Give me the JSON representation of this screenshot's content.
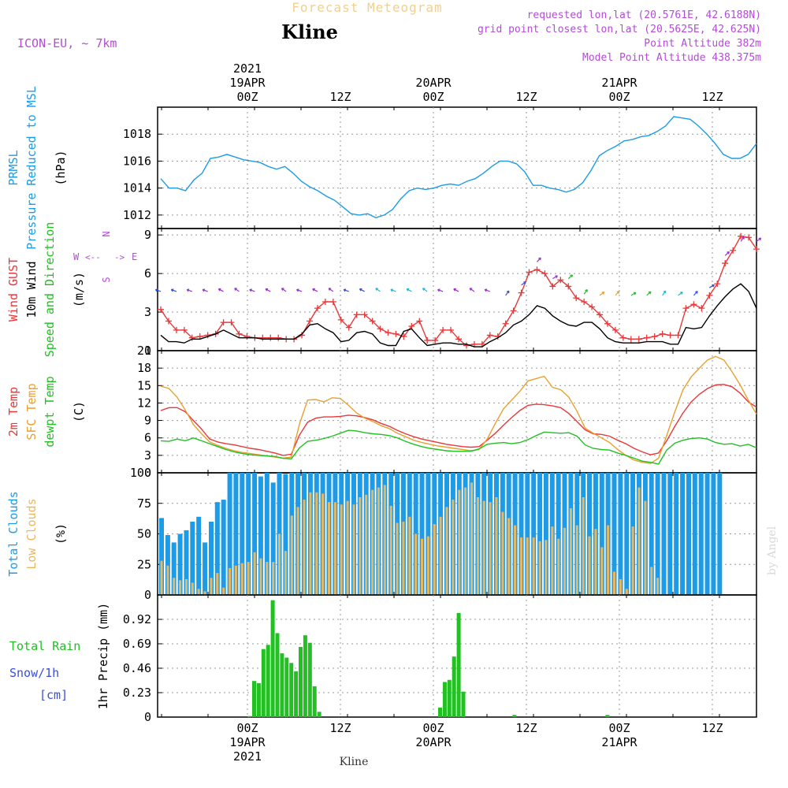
{
  "header": {
    "title": "Forecast Meteogram",
    "location": "Kline",
    "model": "ICON-EU, ~ 7km",
    "requested": "requested lon,lat (20.5761E, 42.6188N)",
    "grid_point": "grid point closest lon,lat (20.5625E, 42.625N)",
    "point_altitude": "Point Altitude 382m",
    "model_altitude": "Model Point Altitude 438.375m",
    "footer_location": "Kline",
    "watermark": "by Angel"
  },
  "time_axis": {
    "major_labels": [
      "00Z",
      "12Z",
      "00Z",
      "12Z",
      "00Z",
      "12Z"
    ],
    "date_labels": [
      "19APR",
      "20APR",
      "21APR"
    ],
    "year_label": "2021"
  },
  "chart_data": [
    {
      "type": "line",
      "id": "pressure",
      "ylabel_lines": [
        "PRMSL",
        "Pressure Reduced to MSL"
      ],
      "unit": "(hPa)",
      "ylim": [
        1011,
        1020
      ],
      "yticks": [
        1012,
        1014,
        1016,
        1018
      ],
      "grid": true,
      "series": [
        {
          "name": "PRMSL",
          "color": "#1e9be6",
          "values": [
            1014.7,
            1014.0,
            1014.0,
            1013.8,
            1014.6,
            1015.1,
            1016.2,
            1016.3,
            1016.5,
            1016.3,
            1016.1,
            1016.0,
            1015.9,
            1015.6,
            1015.4,
            1015.6,
            1015.1,
            1014.5,
            1014.1,
            1013.8,
            1013.4,
            1013.1,
            1012.6,
            1012.1,
            1012.0,
            1012.1,
            1011.8,
            1012.0,
            1012.4,
            1013.2,
            1013.8,
            1014.0,
            1013.9,
            1014.0,
            1014.2,
            1014.3,
            1014.2,
            1014.5,
            1014.7,
            1015.1,
            1015.6,
            1016.0,
            1016.0,
            1015.8,
            1015.2,
            1014.2,
            1014.2,
            1014.0,
            1013.9,
            1013.7,
            1013.9,
            1014.4,
            1015.3,
            1016.4,
            1016.8,
            1017.1,
            1017.5,
            1017.6,
            1017.8,
            1017.9,
            1018.2,
            1018.6,
            1019.3,
            1019.2,
            1019.1,
            1018.6,
            1018.0,
            1017.3,
            1016.5,
            1016.2,
            1016.2,
            1016.5,
            1017.3
          ]
        }
      ]
    },
    {
      "type": "line",
      "id": "wind",
      "ylabel_lines": [
        "Wind GUST",
        "10m Wind",
        "Speed and Direction"
      ],
      "unit": "(m/s)",
      "compass": {
        "n": "N",
        "s": "S",
        "w": "W",
        "e": "E"
      },
      "ylim": [
        0,
        9.5
      ],
      "yticks": [
        0,
        3,
        6,
        9
      ],
      "grid": true,
      "series": [
        {
          "name": "Wind GUST",
          "color": "#e8383a",
          "values": [
            3.2,
            2.3,
            1.6,
            1.6,
            1.0,
            1.1,
            1.2,
            1.3,
            2.2,
            2.2,
            1.3,
            1.1,
            1.0,
            1.0,
            1.0,
            1.0,
            0.9,
            0.9,
            1.2,
            2.3,
            3.3,
            3.8,
            3.8,
            2.4,
            1.8,
            2.8,
            2.8,
            2.3,
            1.7,
            1.4,
            1.3,
            1.1,
            1.9,
            2.3,
            0.8,
            0.8,
            1.6,
            1.6,
            0.9,
            0.4,
            0.5,
            0.5,
            1.2,
            1.1,
            2.1,
            3.1,
            4.5,
            6.1,
            6.3,
            6.0,
            5.0,
            5.5,
            5.0,
            4.1,
            3.8,
            3.4,
            2.8,
            2.1,
            1.6,
            1.0,
            0.9,
            0.9,
            1.0,
            1.1,
            1.3,
            1.2,
            1.2,
            3.3,
            3.6,
            3.3,
            4.3,
            5.2,
            6.8,
            7.8,
            8.9,
            8.8,
            7.9
          ]
        },
        {
          "name": "10m Wind",
          "color": "#000000",
          "values": [
            1.2,
            0.7,
            0.7,
            0.6,
            0.9,
            0.9,
            1.1,
            1.3,
            1.6,
            1.3,
            1.0,
            1.0,
            1.0,
            0.9,
            0.9,
            0.9,
            0.9,
            0.9,
            1.3,
            2.0,
            2.1,
            1.7,
            1.4,
            0.7,
            0.8,
            1.4,
            1.5,
            1.3,
            0.6,
            0.4,
            0.4,
            1.5,
            1.7,
            1.0,
            0.4,
            0.5,
            0.6,
            0.6,
            0.5,
            0.5,
            0.3,
            0.3,
            0.7,
            1.0,
            1.4,
            2.0,
            2.3,
            2.8,
            3.5,
            3.3,
            2.7,
            2.3,
            2.0,
            1.9,
            2.2,
            2.2,
            1.7,
            1.0,
            0.7,
            0.6,
            0.6,
            0.6,
            0.7,
            0.7,
            0.7,
            0.5,
            0.5,
            1.8,
            1.7,
            1.8,
            2.7,
            3.5,
            4.2,
            4.8,
            5.2,
            4.6,
            3.3
          ]
        }
      ]
    },
    {
      "type": "line",
      "id": "temperature",
      "ylabel_lines": [
        "2m Temp",
        "SFC Temp",
        "dewpt Temp"
      ],
      "unit": "(C)",
      "ylim": [
        0,
        21
      ],
      "yticks": [
        0,
        3,
        6,
        9,
        12,
        15,
        18,
        21
      ],
      "grid": true,
      "series": [
        {
          "name": "2m Temp",
          "color": "#e8383a",
          "values": [
            10.7,
            11.2,
            11.2,
            10.5,
            9.0,
            7.5,
            5.8,
            5.3,
            5.0,
            4.8,
            4.5,
            4.2,
            4.0,
            3.7,
            3.4,
            3.0,
            3.2,
            6.5,
            8.7,
            9.4,
            9.6,
            9.6,
            9.7,
            9.9,
            9.8,
            9.5,
            9.1,
            8.5,
            8.0,
            7.3,
            6.7,
            6.2,
            5.8,
            5.5,
            5.2,
            4.9,
            4.7,
            4.5,
            4.4,
            4.5,
            5.6,
            6.8,
            8.2,
            9.5,
            10.7,
            11.6,
            11.8,
            11.7,
            11.5,
            11.2,
            10.2,
            8.8,
            7.4,
            6.7,
            6.6,
            6.3,
            5.6,
            5.0,
            4.2,
            3.6,
            3.1,
            3.4,
            5.5,
            8.0,
            10.3,
            12.2,
            13.5,
            14.5,
            15.1,
            15.2,
            14.8,
            13.7,
            12.2,
            11.3
          ]
        },
        {
          "name": "SFC Temp",
          "color": "#e8a030",
          "values": [
            14.9,
            14.5,
            13.0,
            10.8,
            8.3,
            6.7,
            5.3,
            4.7,
            4.2,
            3.8,
            3.5,
            3.3,
            3.1,
            2.9,
            2.7,
            2.5,
            2.7,
            8.4,
            12.5,
            12.6,
            12.2,
            12.9,
            12.8,
            11.6,
            10.3,
            9.4,
            8.8,
            8.1,
            7.6,
            6.8,
            6.2,
            5.6,
            5.2,
            4.9,
            4.6,
            4.4,
            4.2,
            4.0,
            3.8,
            4.0,
            5.8,
            8.5,
            11.0,
            12.5,
            14.0,
            15.8,
            16.2,
            16.6,
            14.7,
            14.3,
            13.0,
            10.6,
            7.7,
            6.8,
            6.0,
            5.2,
            4.0,
            3.0,
            2.2,
            1.8,
            1.6,
            2.5,
            6.4,
            10.5,
            14.3,
            16.5,
            18.0,
            19.4,
            20.0,
            19.4,
            17.4,
            15.1,
            12.5,
            10.1
          ]
        },
        {
          "name": "dewpt Temp",
          "color": "#22c022",
          "values": [
            5.5,
            5.4,
            5.8,
            5.5,
            6.0,
            5.5,
            5.0,
            4.5,
            4.0,
            3.6,
            3.3,
            3.1,
            3.0,
            2.9,
            2.8,
            2.5,
            2.4,
            4.3,
            5.4,
            5.6,
            5.9,
            6.3,
            6.8,
            7.3,
            7.2,
            6.9,
            6.7,
            6.6,
            6.4,
            6.0,
            5.4,
            4.9,
            4.5,
            4.2,
            4.0,
            3.8,
            3.7,
            3.7,
            3.7,
            4.1,
            4.9,
            5.1,
            5.2,
            5.0,
            5.2,
            5.7,
            6.4,
            7.0,
            6.9,
            6.8,
            6.9,
            6.3,
            4.8,
            4.2,
            4.0,
            3.9,
            3.4,
            3.0,
            2.5,
            2.0,
            1.8,
            1.5,
            3.9,
            5.1,
            5.6,
            5.9,
            6.0,
            5.8,
            5.2,
            4.9,
            5.0,
            4.6,
            4.9,
            4.3
          ]
        }
      ]
    },
    {
      "type": "bar",
      "id": "clouds",
      "ylabel_lines": [
        "Total Clouds",
        "Low Clouds"
      ],
      "unit": "(%)",
      "ylim": [
        0,
        100
      ],
      "yticks": [
        0,
        25,
        50,
        75,
        100
      ],
      "grid": true,
      "series": [
        {
          "name": "Total Clouds",
          "color": "#1e9be6",
          "values": [
            63,
            49,
            43,
            50,
            53,
            60,
            64,
            43,
            60,
            76,
            78,
            100,
            100,
            100,
            100,
            100,
            97,
            100,
            92,
            100,
            99,
            100,
            100,
            100,
            100,
            100,
            100,
            100,
            100,
            100,
            100,
            100,
            100,
            100,
            100,
            100,
            100,
            100,
            100,
            100,
            100,
            100,
            100,
            100,
            100,
            100,
            100,
            100,
            100,
            100,
            100,
            100,
            100,
            100,
            100,
            100,
            100,
            100,
            100,
            100,
            100,
            100,
            100,
            100,
            100,
            100,
            100,
            100,
            100,
            100,
            100,
            100,
            100,
            100,
            100,
            100,
            100,
            100,
            100,
            100,
            100,
            100,
            100,
            100,
            100,
            100,
            100,
            100,
            100,
            100,
            100
          ]
        },
        {
          "name": "Low Clouds",
          "color": "#e8b860",
          "values": [
            28,
            24,
            14,
            12,
            13,
            10,
            5,
            3,
            14,
            18,
            6,
            22,
            24,
            26,
            27,
            35,
            30,
            27,
            27,
            50,
            36,
            65,
            72,
            78,
            84,
            84,
            83,
            76,
            76,
            74,
            77,
            74,
            80,
            82,
            86,
            88,
            90,
            73,
            59,
            60,
            64,
            50,
            46,
            48,
            58,
            64,
            72,
            78,
            86,
            88,
            92,
            80,
            77,
            76,
            80,
            68,
            63,
            57,
            47,
            47,
            47,
            44,
            45,
            56,
            46,
            55,
            71,
            57,
            80,
            48,
            54,
            39,
            57,
            19,
            13,
            5,
            56,
            88,
            77,
            23,
            14,
            0,
            0,
            0,
            0,
            0,
            0
          ]
        }
      ]
    },
    {
      "type": "bar",
      "id": "precip",
      "ylabel_lines": [
        "Total Rain",
        "Snow/1h",
        "[cm]"
      ],
      "ylabel_right": "1hr Precip (mm)",
      "ylim": [
        0,
        1.15
      ],
      "yticks": [
        0,
        0.23,
        0.46,
        0.69,
        0.92
      ],
      "ytick_labels": [
        "0",
        "0.23",
        "0.46",
        "0.69",
        "0.92"
      ],
      "grid": true,
      "series": [
        {
          "name": "Total Rain",
          "color": "#22c022",
          "values": [
            0,
            0,
            0,
            0,
            0,
            0,
            0,
            0,
            0,
            0,
            0,
            0,
            0,
            0,
            0,
            0,
            0,
            0,
            0,
            0.01,
            0.34,
            0.32,
            0.64,
            0.68,
            1.1,
            0.79,
            0.6,
            0.56,
            0.51,
            0.43,
            0.66,
            0.77,
            0.7,
            0.29,
            0.05,
            0,
            0,
            0,
            0,
            0,
            0,
            0,
            0,
            0,
            0,
            0,
            0,
            0,
            0,
            0,
            0,
            0,
            0,
            0,
            0,
            0,
            0,
            0,
            0,
            0,
            0.09,
            0.33,
            0.35,
            0.57,
            0.98,
            0.24,
            0,
            0,
            0,
            0,
            0,
            0,
            0,
            0,
            0,
            0,
            0.02,
            0,
            0,
            0,
            0,
            0,
            0,
            0,
            0,
            0,
            0,
            0,
            0,
            0,
            0,
            0,
            0,
            0,
            0,
            0,
            0.02,
            0,
            0,
            0,
            0
          ]
        }
      ]
    }
  ]
}
